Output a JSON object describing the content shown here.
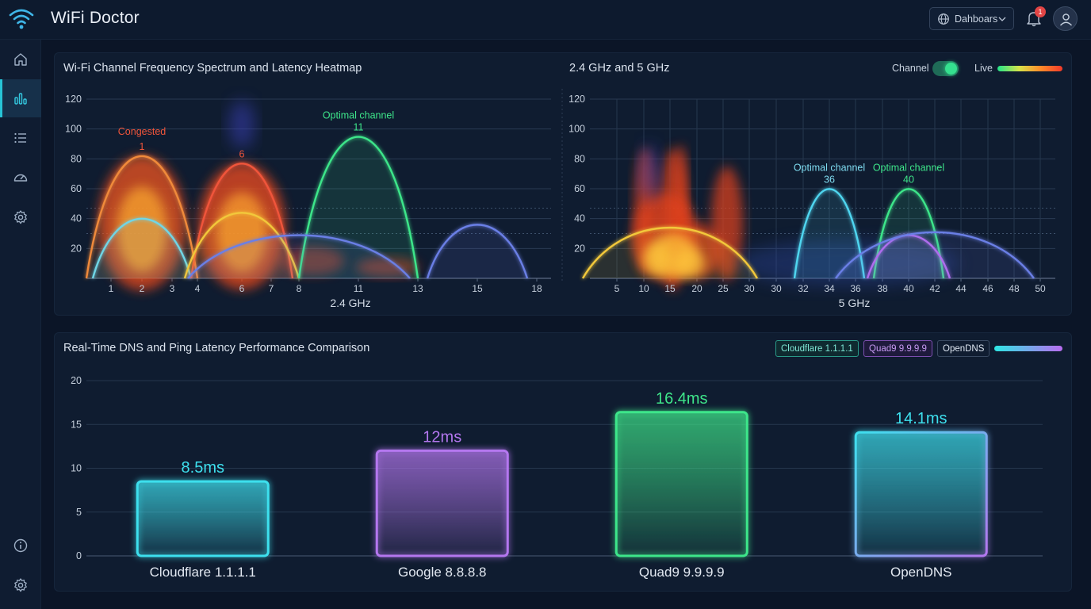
{
  "app": {
    "title": "WiFi Doctor"
  },
  "header": {
    "dashboard_label": "Dahboars",
    "notification_count": "1"
  },
  "sidebar": {
    "items": [
      {
        "name": "home",
        "icon": "home-icon",
        "active": false
      },
      {
        "name": "analytics",
        "icon": "bar-chart-icon",
        "active": true
      },
      {
        "name": "list",
        "icon": "list-icon",
        "active": false
      },
      {
        "name": "speed",
        "icon": "speedometer-icon",
        "active": false
      },
      {
        "name": "settings",
        "icon": "gear-icon",
        "active": false
      }
    ],
    "bottom_items": [
      {
        "name": "info",
        "icon": "info-icon"
      },
      {
        "name": "settings-bottom",
        "icon": "gear-icon"
      }
    ]
  },
  "spectrum_panel": {
    "title": "Wi-Fi Channel Frequency Spectrum and Latency Heatmap",
    "right_title": "2.4 GHz and 5 GHz",
    "channel_toggle_label": "Channel",
    "channel_toggle_on": true,
    "live_label": "Live"
  },
  "dns_panel": {
    "title": "Real-Time DNS and Ping Latency Performance Comparison",
    "legend": [
      {
        "label": "Cloudflare 1.1.1.1",
        "color": "#2ee6c8"
      },
      {
        "label": "Quad9 9.9.9.9",
        "color": "#b96cf0"
      },
      {
        "label": "OpenDNS",
        "color": "#dfe7f2"
      }
    ]
  },
  "chart_data": [
    {
      "type": "area",
      "xlabel": "2.4 GHz",
      "ylim": [
        0,
        120
      ],
      "yticks": [
        20,
        40,
        60,
        80,
        100,
        120
      ],
      "xticks": [
        "1",
        "2",
        "3",
        "4",
        "6",
        "7",
        "8",
        "11",
        "13",
        "15",
        "18"
      ],
      "grid": true,
      "series": [
        {
          "center": "2",
          "peak": 82,
          "color": "#f08a3a"
        },
        {
          "center": "2",
          "peak": 40,
          "color": "#6fd6e6"
        },
        {
          "center": "6",
          "peak": 77,
          "color": "#f0553a"
        },
        {
          "center": "6",
          "peak": 44,
          "color": "#f2c83a"
        },
        {
          "center": "11",
          "peak": 95,
          "color": "#3ee68a"
        },
        {
          "center": "8",
          "peak": 29,
          "color": "#6b7fe6"
        },
        {
          "center": "15",
          "peak": 36,
          "color": "#6b7fe6"
        }
      ],
      "annotations": [
        {
          "text": "Congested",
          "x": "2",
          "y": 96,
          "color": "#f0553a"
        },
        {
          "text": "1",
          "x": "2",
          "y": 86,
          "color": "#f0553a"
        },
        {
          "text": "6",
          "x": "6",
          "y": 81,
          "color": "#f0553a"
        },
        {
          "text": "Optimal channel",
          "x": "11",
          "y": 107,
          "color": "#3ee68a"
        },
        {
          "text": "11",
          "x": "11",
          "y": 99,
          "color": "#3ee68a"
        }
      ]
    },
    {
      "type": "area",
      "xlabel": "5 GHz",
      "ylim": [
        0,
        120
      ],
      "yticks": [
        20,
        40,
        60,
        80,
        100,
        120
      ],
      "xticks": [
        "5",
        "10",
        "15",
        "20",
        "25",
        "30",
        "30",
        "32",
        "34",
        "36",
        "38",
        "40",
        "42",
        "44",
        "46",
        "48",
        "50"
      ],
      "grid": true,
      "series": [
        {
          "center": "15",
          "peak": 34,
          "color": "#f2c83a"
        },
        {
          "center": "34",
          "peak": 60,
          "color": "#4fd6f0"
        },
        {
          "center": "40",
          "peak": 60,
          "color": "#3ee68a"
        },
        {
          "center": "40",
          "peak": 29,
          "color": "#b96cf0"
        },
        {
          "center": "42",
          "peak": 31,
          "color": "#6b7fe6"
        }
      ],
      "annotations": [
        {
          "text": "Optimal channel",
          "x": "34",
          "y": 72,
          "color": "#7fdcf0"
        },
        {
          "text": "36",
          "x": "34",
          "y": 64,
          "color": "#7fdcf0"
        },
        {
          "text": "Optimal channel",
          "x": "40",
          "y": 72,
          "color": "#3ee68a"
        },
        {
          "text": "40",
          "x": "40",
          "y": 64,
          "color": "#3ee68a"
        }
      ]
    },
    {
      "type": "bar",
      "categories": [
        "Cloudflare 1.1.1.1",
        "Google 8.8.8.8",
        "Quad9 9.9.9.9",
        "OpenDNS"
      ],
      "values": [
        8.5,
        12,
        16.4,
        14.1
      ],
      "value_labels": [
        "8.5ms",
        "12ms",
        "16.4ms",
        "14.1ms"
      ],
      "colors": [
        "#3ee0ee",
        "#b477ef",
        "#3ee68a",
        "#3ee0ee"
      ],
      "ylim": [
        0,
        20
      ],
      "yticks": [
        0,
        5,
        10,
        15,
        20
      ],
      "grid": true
    }
  ]
}
